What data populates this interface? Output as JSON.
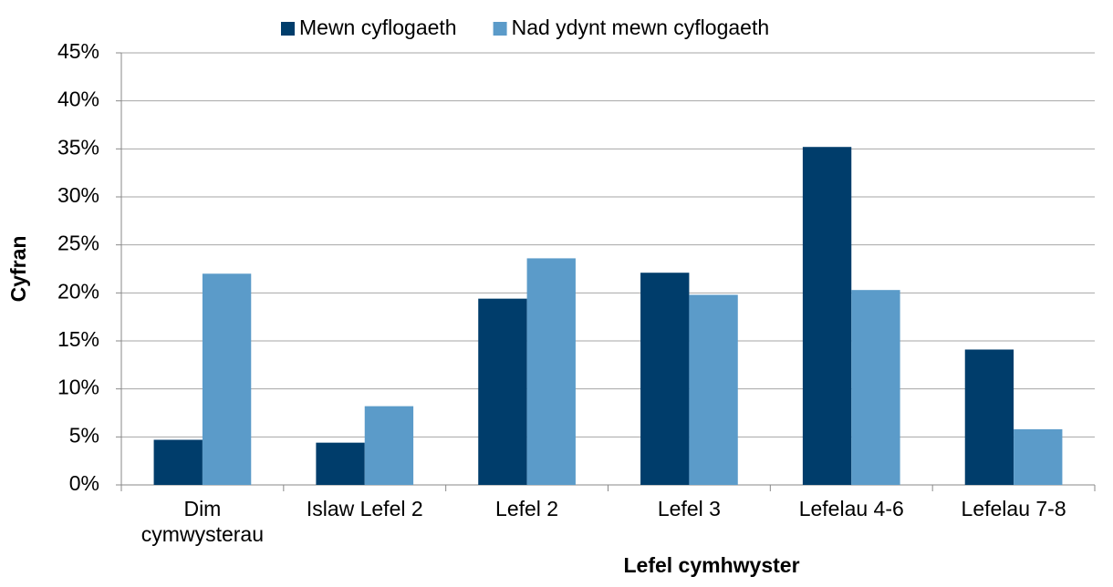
{
  "chart_data": {
    "type": "bar",
    "x_label": "Lefel cymhwyster",
    "y_label": "Cyfran",
    "categories": [
      "Dim cymwysterau",
      "Islaw Lefel 2",
      "Lefel 2",
      "Lefel 3",
      "Lefelau 4-6",
      "Lefelau 7-8"
    ],
    "series": [
      {
        "name": "Mewn cyflogaeth",
        "color": "#003d6b",
        "values": [
          4.7,
          4.4,
          19.4,
          22.1,
          35.2,
          14.1
        ]
      },
      {
        "name": "Nad ydynt mewn cyflogaeth",
        "color": "#5b9bc9",
        "values": [
          22.0,
          8.2,
          23.6,
          19.8,
          20.3,
          5.8
        ]
      }
    ],
    "ylim": [
      0,
      45
    ],
    "yticks": [
      {
        "value": 0,
        "label": "0%"
      },
      {
        "value": 5,
        "label": "5%"
      },
      {
        "value": 10,
        "label": "10%"
      },
      {
        "value": 15,
        "label": "15%"
      },
      {
        "value": 20,
        "label": "20%"
      },
      {
        "value": 25,
        "label": "25%"
      },
      {
        "value": 30,
        "label": "30%"
      },
      {
        "value": 35,
        "label": "35%"
      },
      {
        "value": 40,
        "label": "40%"
      },
      {
        "value": 45,
        "label": "45%"
      }
    ],
    "grid": true,
    "legend": "top"
  }
}
